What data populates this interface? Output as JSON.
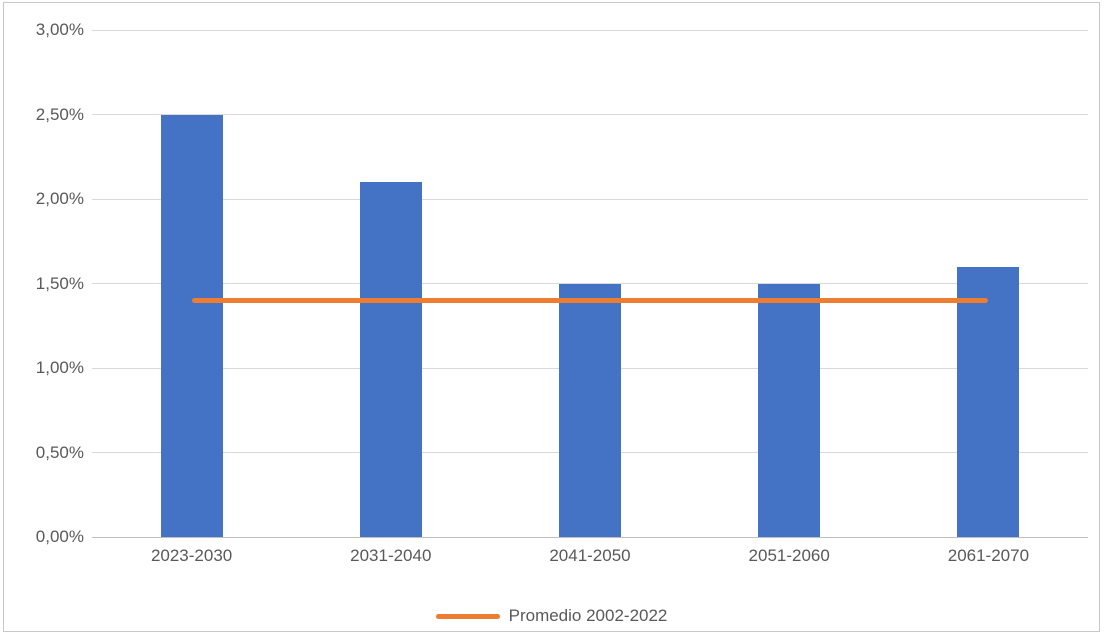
{
  "chart_data": {
    "type": "bar",
    "categories": [
      "2023-2030",
      "2031-2040",
      "2041-2050",
      "2051-2060",
      "2061-2070"
    ],
    "values": [
      2.5,
      2.1,
      1.5,
      1.5,
      1.6
    ],
    "value_unit": "percent",
    "title": "",
    "xlabel": "",
    "ylabel": "",
    "ylim": [
      0,
      3
    ],
    "ytick_step": 0.5,
    "ytick_labels": [
      "0,00%",
      "0,50%",
      "1,00%",
      "1,50%",
      "2,00%",
      "2,50%",
      "3,00%"
    ],
    "grid": true,
    "legend_position": "bottom",
    "reference_line": {
      "label": "Promedio 2002-2022",
      "value": 1.4
    }
  },
  "colors": {
    "bar": "#4472C4",
    "reference_line": "#ED7D31",
    "gridline": "#D9D9D9",
    "axis_line": "#BFBFBF",
    "axis_text": "#595959",
    "frame_border": "#C9C7C7",
    "background": "#FFFFFF"
  }
}
